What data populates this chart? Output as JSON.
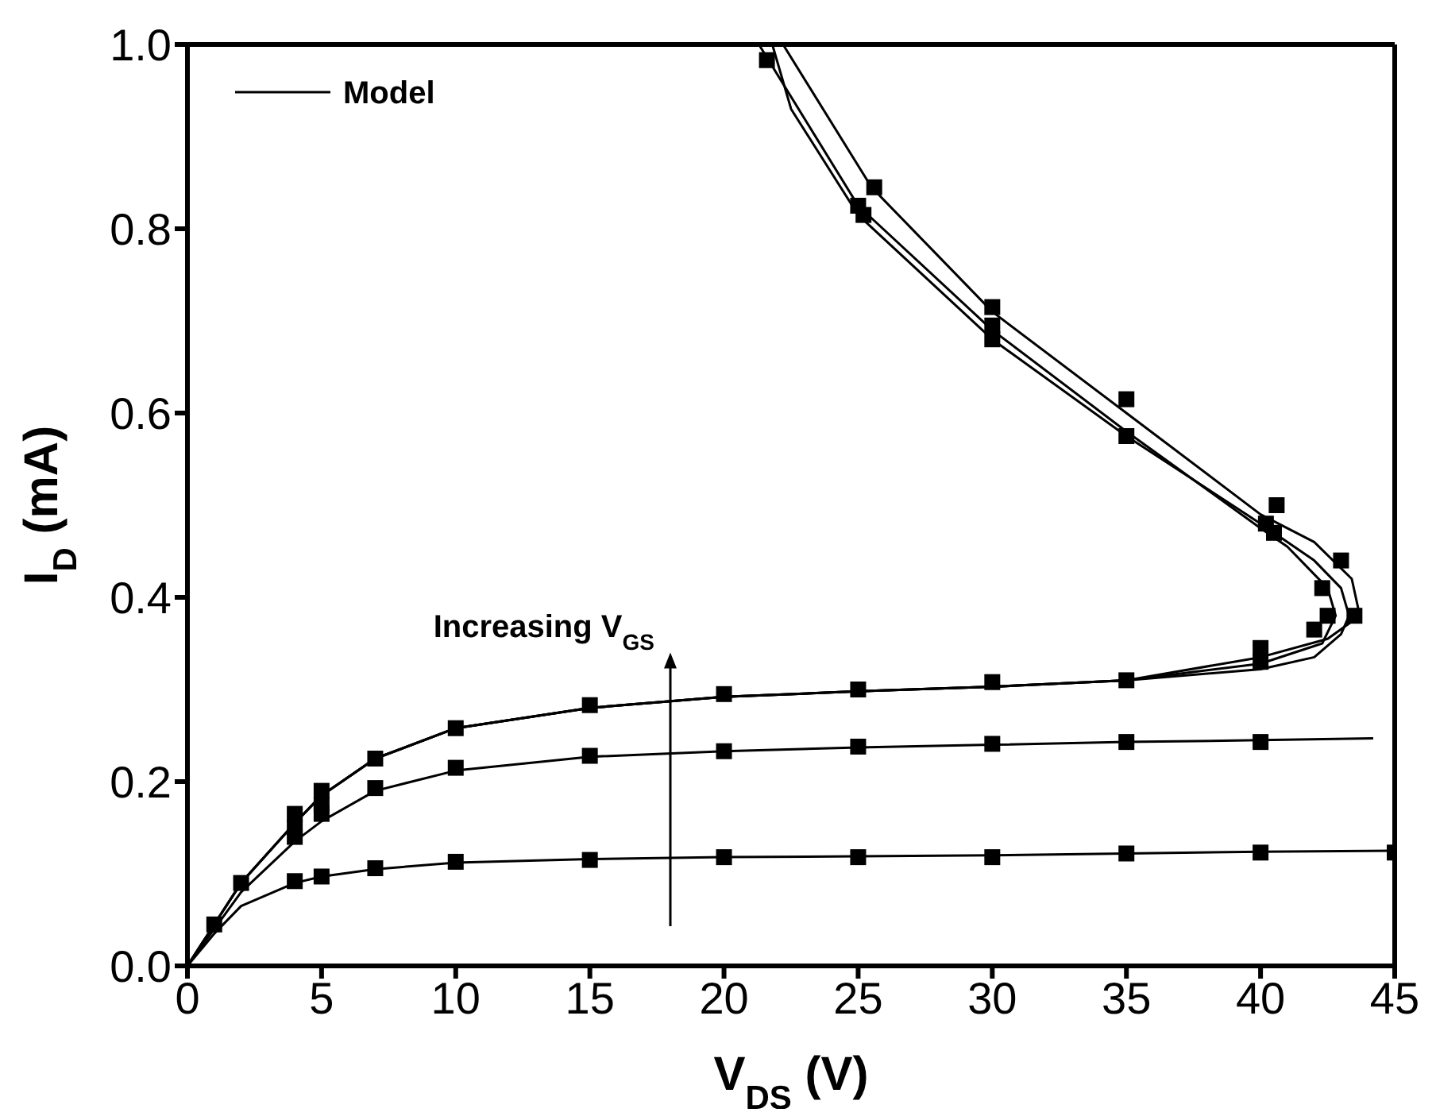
{
  "chart_data": {
    "type": "line",
    "xlabel": "V$_{DS}$ (V)",
    "ylabel": "I$_{D}$ (mA)",
    "xlim": [
      0,
      45
    ],
    "ylim": [
      0,
      1.0
    ],
    "xticks": [
      0,
      5,
      10,
      15,
      20,
      25,
      30,
      35,
      40,
      45
    ],
    "yticks": [
      {
        "value": 0,
        "label": "0.0"
      },
      {
        "value": 0.2,
        "label": "0.2"
      },
      {
        "value": 0.4,
        "label": "0.4"
      },
      {
        "value": 0.6,
        "label": "0.6"
      },
      {
        "value": 0.8,
        "label": "0.8"
      },
      {
        "value": 1.0,
        "label": "1.0"
      }
    ],
    "grid": false,
    "legend": "top left",
    "annotations": [
      "Increasing V$_{GS}$"
    ],
    "series": [
      {
        "name": "Model",
        "color": "#000000",
        "marker": "none",
        "x": [
          0,
          1,
          2,
          4,
          5,
          7,
          10,
          15,
          20,
          25,
          30,
          35,
          40,
          45
        ],
        "values": [
          0,
          0.035,
          0.065,
          0.09,
          0.097,
          0.105,
          0.112,
          0.116,
          0.118,
          0.119,
          0.12,
          0.122,
          0.124,
          0.125
        ]
      },
      {
        "color": "#000000",
        "marker": "none",
        "x": [
          0,
          1,
          2,
          4,
          5,
          7,
          10,
          15,
          20,
          25,
          30,
          35,
          40,
          44.2
        ],
        "values": [
          0,
          0.04,
          0.08,
          0.135,
          0.157,
          0.19,
          0.212,
          0.227,
          0.233,
          0.237,
          0.24,
          0.243,
          0.245,
          0.247
        ]
      },
      {
        "type": "line",
        "color": "#000000",
        "marker": "none",
        "x": [
          0,
          1,
          2,
          4,
          5,
          7,
          10,
          15,
          20,
          25,
          30,
          35,
          40,
          42,
          43,
          43.3,
          43,
          42,
          40,
          35,
          30,
          25,
          22.5,
          21.8
        ],
        "values": [
          0,
          0.045,
          0.09,
          0.155,
          0.185,
          0.225,
          0.258,
          0.28,
          0.292,
          0.298,
          0.303,
          0.31,
          0.322,
          0.335,
          0.36,
          0.38,
          0.41,
          0.44,
          0.48,
          0.575,
          0.68,
          0.815,
          0.93,
          1.0
        ]
      },
      {
        "type": "line",
        "color": "#000000",
        "marker": "none",
        "x": [
          0,
          1,
          2,
          4,
          5,
          7,
          10,
          15,
          20,
          25,
          30,
          35,
          40,
          42.3,
          42.8,
          42.5,
          41,
          40,
          35,
          30,
          25,
          21.3
        ],
        "values": [
          0,
          0.045,
          0.09,
          0.155,
          0.185,
          0.225,
          0.258,
          0.28,
          0.292,
          0.298,
          0.303,
          0.31,
          0.328,
          0.35,
          0.38,
          0.41,
          0.455,
          0.475,
          0.58,
          0.69,
          0.825,
          1.0
        ]
      },
      {
        "type": "line",
        "color": "#000000",
        "marker": "none",
        "x": [
          0,
          1,
          2,
          4,
          5,
          7,
          10,
          15,
          20,
          25,
          30,
          35,
          40,
          42.5,
          43.7,
          43.4,
          42,
          40,
          35,
          30,
          25.5,
          22.2
        ],
        "values": [
          0,
          0.045,
          0.09,
          0.155,
          0.185,
          0.225,
          0.258,
          0.28,
          0.292,
          0.298,
          0.303,
          0.31,
          0.335,
          0.355,
          0.38,
          0.42,
          0.46,
          0.49,
          0.6,
          0.71,
          0.845,
          1.0
        ]
      },
      {
        "type": "scatter",
        "color": "#000000",
        "marker": "square",
        "x": [
          4,
          5,
          7,
          10,
          15,
          20,
          25,
          30,
          35,
          40,
          45
        ],
        "values": [
          0.092,
          0.097,
          0.106,
          0.113,
          0.115,
          0.118,
          0.118,
          0.118,
          0.122,
          0.123,
          0.123
        ]
      },
      {
        "type": "scatter",
        "color": "#000000",
        "marker": "square",
        "x": [
          4,
          5,
          7,
          10,
          15,
          20,
          25,
          30,
          35,
          40
        ],
        "values": [
          0.14,
          0.165,
          0.193,
          0.215,
          0.228,
          0.233,
          0.238,
          0.241,
          0.243,
          0.243
        ]
      },
      {
        "type": "scatter",
        "color": "#000000",
        "marker": "square",
        "x": [
          1,
          2,
          4,
          4,
          5,
          5,
          7,
          10,
          15,
          20,
          25,
          30,
          35,
          40,
          40,
          42,
          42.3,
          42.5,
          43,
          43.5,
          40.2,
          40.5,
          40.6,
          35,
          35,
          30,
          30,
          30,
          25,
          25.2,
          25.6,
          21.6
        ],
        "values": [
          0.045,
          0.09,
          0.15,
          0.165,
          0.175,
          0.19,
          0.225,
          0.258,
          0.283,
          0.295,
          0.3,
          0.308,
          0.31,
          0.33,
          0.345,
          0.365,
          0.41,
          0.38,
          0.44,
          0.38,
          0.48,
          0.47,
          0.5,
          0.575,
          0.615,
          0.68,
          0.695,
          0.715,
          0.825,
          0.815,
          0.845,
          0.983
        ]
      }
    ]
  }
}
